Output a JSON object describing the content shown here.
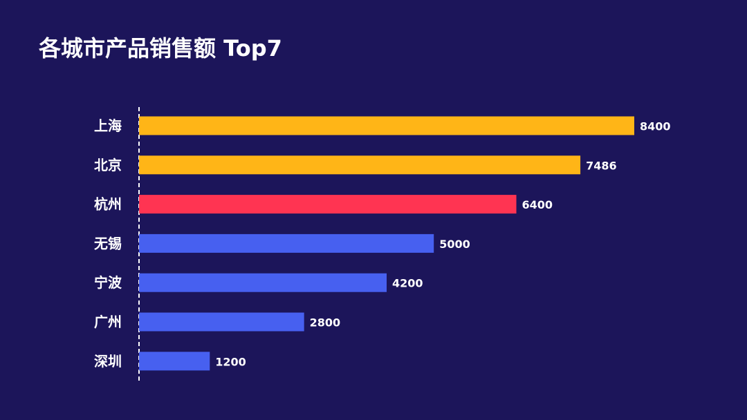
{
  "title": "各城市产品销售额 Top7",
  "colors": {
    "background": "#1c155a",
    "top_bars": "#ffb517",
    "highlight": "#ff3452",
    "default_bars": "#4760f0",
    "axis": "#ffffff",
    "text": "#ffffff"
  },
  "chart_data": {
    "type": "bar",
    "orientation": "horizontal",
    "title": "各城市产品销售额 Top7",
    "categories": [
      "上海",
      "北京",
      "杭州",
      "无锡",
      "宁波",
      "广州",
      "深圳"
    ],
    "values": [
      8400,
      7486,
      6400,
      5000,
      4200,
      2800,
      1200
    ],
    "bar_colors": [
      "#ffb517",
      "#ffb517",
      "#ff3452",
      "#4760f0",
      "#4760f0",
      "#4760f0",
      "#4760f0"
    ],
    "xlim": [
      0,
      8400
    ],
    "data_labels": true,
    "grid": false,
    "legend": "none",
    "xlabel": "",
    "ylabel": ""
  }
}
